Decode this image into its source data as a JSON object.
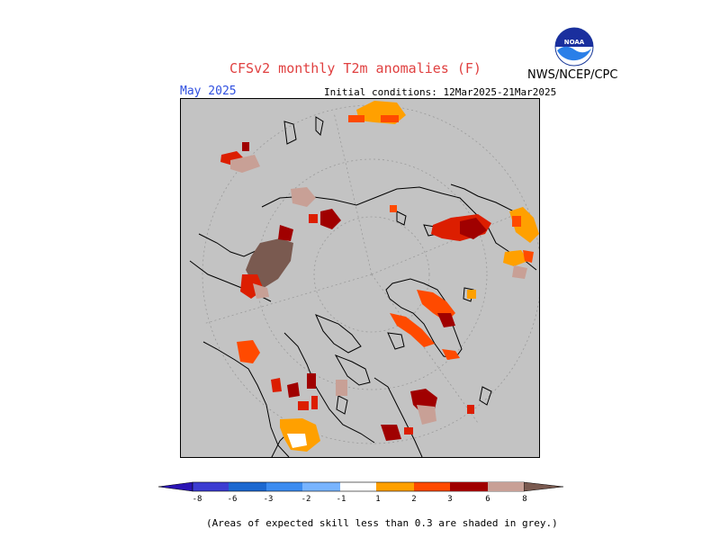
{
  "header": {
    "title": "CFSv2 monthly T2m anomalies (F)",
    "agency": "NWS/NCEP/CPC",
    "logo_text": "NOAA",
    "month": "May 2025",
    "initial_conditions": "Initial conditions: 12Mar2025-21Mar2025"
  },
  "map": {
    "projection": "north polar stereographic",
    "background_color": "#c3c3c3"
  },
  "legend": {
    "ticks": [
      "-8",
      "-6",
      "-3",
      "-2",
      "-1",
      "1",
      "2",
      "3",
      "6",
      "8"
    ],
    "colors": [
      "#2b14b4",
      "#3c3cd2",
      "#1c68d0",
      "#3c8cf0",
      "#78b4ff",
      "#ffffff",
      "#ffa000",
      "#ff4a00",
      "#dc1e00",
      "#a00000",
      "#c8a096",
      "#7a5a50"
    ]
  },
  "footnote": "(Areas of expected skill less than 0.3 are shaded in grey.)"
}
